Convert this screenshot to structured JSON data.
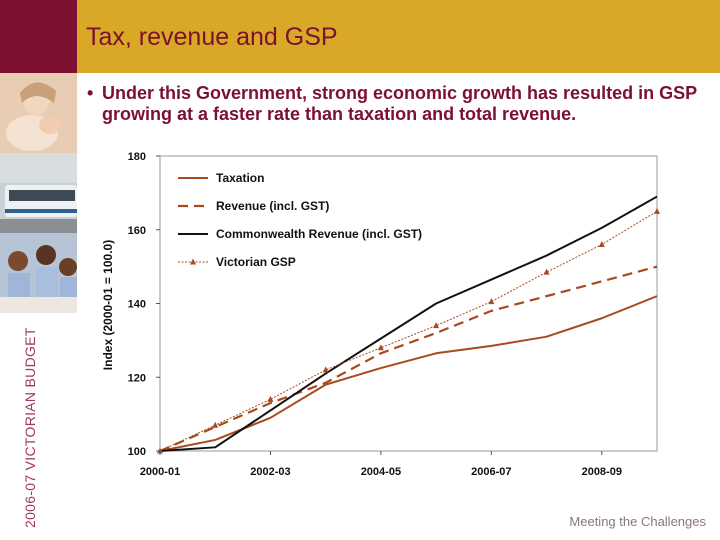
{
  "header": {
    "title": "Tax, revenue and GSP"
  },
  "sidebar": {
    "vertical_label": "2006-07 VICTORIAN BUDGET"
  },
  "bullet": {
    "symbol": "•",
    "text": "Under this Government, strong economic growth has resulted in GSP growing at a faster rate than taxation and total revenue."
  },
  "footer": {
    "tagline": "Meeting the Challenges"
  },
  "colors": {
    "header_bar": "#d9a826",
    "header_accent": "#7b1030",
    "series_brown": "#a84a1e",
    "series_black": "#111111"
  },
  "chart_data": {
    "type": "line",
    "ylabel": "Index (2000-01 = 100.0)",
    "ylim": [
      100,
      180
    ],
    "yticks": [
      100,
      120,
      140,
      160,
      180
    ],
    "x": [
      0,
      1,
      2,
      3,
      4,
      5,
      6,
      7,
      8,
      9
    ],
    "xtick_labels": [
      "2000-01",
      "2002-03",
      "2004-05",
      "2006-07",
      "2008-09"
    ],
    "xtick_positions": [
      0,
      2,
      4,
      6,
      8
    ],
    "legend_position": "top-left",
    "grid": false,
    "series": [
      {
        "name": "Taxation",
        "style": "solid-brown",
        "values": [
          100,
          103,
          109,
          118,
          122.5,
          126.5,
          128.5,
          131,
          136,
          142
        ]
      },
      {
        "name": "Revenue (incl. GST)",
        "style": "dashed-brown",
        "values": [
          100,
          106.5,
          113,
          118.5,
          126.5,
          132,
          138,
          142,
          146,
          150
        ]
      },
      {
        "name": "Commonwealth Revenue (incl. GST)",
        "style": "solid-black",
        "values": [
          100,
          101,
          111,
          121,
          130.5,
          140,
          146.5,
          153,
          160.5,
          169
        ]
      },
      {
        "name": "Victorian GSP",
        "style": "thin-brown-triangles",
        "values": [
          100,
          107,
          114,
          122,
          128,
          134,
          140.5,
          148.5,
          156,
          165
        ]
      }
    ]
  }
}
